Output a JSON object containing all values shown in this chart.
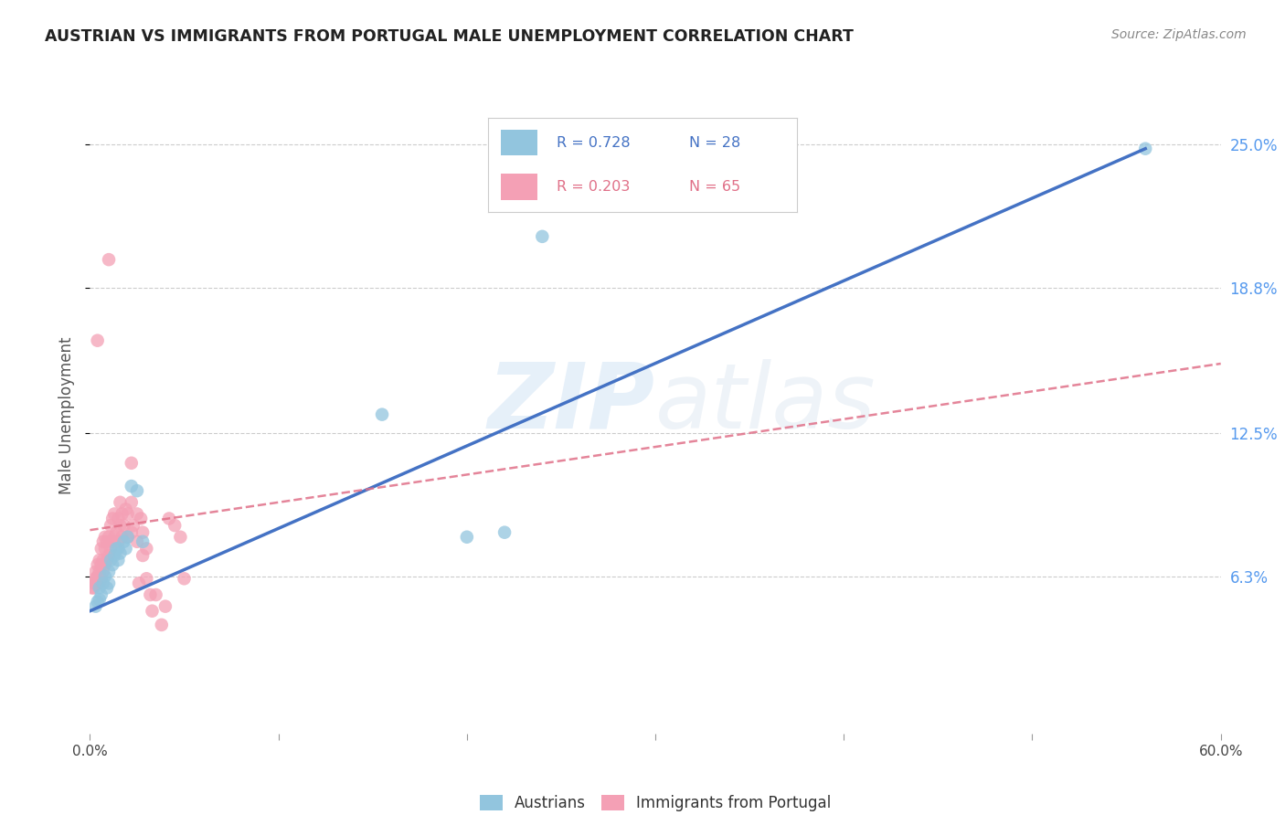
{
  "title": "AUSTRIAN VS IMMIGRANTS FROM PORTUGAL MALE UNEMPLOYMENT CORRELATION CHART",
  "source": "Source: ZipAtlas.com",
  "ylabel": "Male Unemployment",
  "ytick_labels": [
    "6.3%",
    "12.5%",
    "18.8%",
    "25.0%"
  ],
  "ytick_values": [
    0.063,
    0.125,
    0.188,
    0.25
  ],
  "xlim": [
    0.0,
    0.6
  ],
  "ylim": [
    -0.005,
    0.27
  ],
  "watermark_zip": "ZIP",
  "watermark_atlas": "atlas",
  "legend_R1": "R = 0.728",
  "legend_N1": "N = 28",
  "legend_R2": "R = 0.203",
  "legend_N2": "N = 65",
  "legend_label1": "Austrians",
  "legend_label2": "Immigrants from Portugal",
  "austrians_scatter": [
    [
      0.003,
      0.05
    ],
    [
      0.004,
      0.052
    ],
    [
      0.005,
      0.053
    ],
    [
      0.005,
      0.058
    ],
    [
      0.006,
      0.055
    ],
    [
      0.007,
      0.06
    ],
    [
      0.008,
      0.063
    ],
    [
      0.009,
      0.058
    ],
    [
      0.01,
      0.06
    ],
    [
      0.01,
      0.065
    ],
    [
      0.011,
      0.07
    ],
    [
      0.012,
      0.068
    ],
    [
      0.013,
      0.072
    ],
    [
      0.014,
      0.075
    ],
    [
      0.015,
      0.07
    ],
    [
      0.015,
      0.075
    ],
    [
      0.016,
      0.073
    ],
    [
      0.018,
      0.078
    ],
    [
      0.019,
      0.075
    ],
    [
      0.02,
      0.08
    ],
    [
      0.022,
      0.102
    ],
    [
      0.025,
      0.1
    ],
    [
      0.028,
      0.078
    ],
    [
      0.155,
      0.133
    ],
    [
      0.2,
      0.08
    ],
    [
      0.22,
      0.082
    ],
    [
      0.24,
      0.21
    ],
    [
      0.56,
      0.248
    ]
  ],
  "portugal_scatter": [
    [
      0.001,
      0.058
    ],
    [
      0.002,
      0.058
    ],
    [
      0.002,
      0.06
    ],
    [
      0.003,
      0.06
    ],
    [
      0.003,
      0.062
    ],
    [
      0.003,
      0.065
    ],
    [
      0.004,
      0.06
    ],
    [
      0.004,
      0.063
    ],
    [
      0.004,
      0.068
    ],
    [
      0.005,
      0.06
    ],
    [
      0.005,
      0.065
    ],
    [
      0.005,
      0.07
    ],
    [
      0.006,
      0.062
    ],
    [
      0.006,
      0.068
    ],
    [
      0.006,
      0.075
    ],
    [
      0.007,
      0.065
    ],
    [
      0.007,
      0.07
    ],
    [
      0.007,
      0.078
    ],
    [
      0.008,
      0.068
    ],
    [
      0.008,
      0.075
    ],
    [
      0.008,
      0.08
    ],
    [
      0.009,
      0.07
    ],
    [
      0.009,
      0.078
    ],
    [
      0.01,
      0.072
    ],
    [
      0.01,
      0.08
    ],
    [
      0.011,
      0.075
    ],
    [
      0.011,
      0.085
    ],
    [
      0.012,
      0.078
    ],
    [
      0.012,
      0.088
    ],
    [
      0.013,
      0.08
    ],
    [
      0.013,
      0.09
    ],
    [
      0.014,
      0.082
    ],
    [
      0.015,
      0.078
    ],
    [
      0.015,
      0.088
    ],
    [
      0.016,
      0.085
    ],
    [
      0.016,
      0.095
    ],
    [
      0.017,
      0.08
    ],
    [
      0.017,
      0.09
    ],
    [
      0.018,
      0.085
    ],
    [
      0.019,
      0.092
    ],
    [
      0.02,
      0.08
    ],
    [
      0.02,
      0.09
    ],
    [
      0.022,
      0.082
    ],
    [
      0.022,
      0.095
    ],
    [
      0.022,
      0.112
    ],
    [
      0.023,
      0.085
    ],
    [
      0.025,
      0.078
    ],
    [
      0.025,
      0.09
    ],
    [
      0.026,
      0.06
    ],
    [
      0.027,
      0.088
    ],
    [
      0.028,
      0.072
    ],
    [
      0.028,
      0.082
    ],
    [
      0.03,
      0.062
    ],
    [
      0.03,
      0.075
    ],
    [
      0.032,
      0.055
    ],
    [
      0.033,
      0.048
    ],
    [
      0.035,
      0.055
    ],
    [
      0.038,
      0.042
    ],
    [
      0.04,
      0.05
    ],
    [
      0.042,
      0.088
    ],
    [
      0.045,
      0.085
    ],
    [
      0.048,
      0.08
    ],
    [
      0.05,
      0.062
    ],
    [
      0.004,
      0.165
    ],
    [
      0.01,
      0.2
    ]
  ],
  "blue_line_x": [
    0.0,
    0.56
  ],
  "blue_line_y": [
    0.048,
    0.248
  ],
  "pink_line_x": [
    0.0,
    0.6
  ],
  "pink_line_y": [
    0.083,
    0.155
  ],
  "blue_scatter_color": "#92c5de",
  "pink_scatter_color": "#f4a0b5",
  "blue_line_color": "#4472c4",
  "pink_line_color": "#e07088",
  "background_color": "#ffffff",
  "grid_color": "#cccccc",
  "right_tick_color": "#5599ee",
  "title_color": "#222222",
  "source_color": "#888888"
}
